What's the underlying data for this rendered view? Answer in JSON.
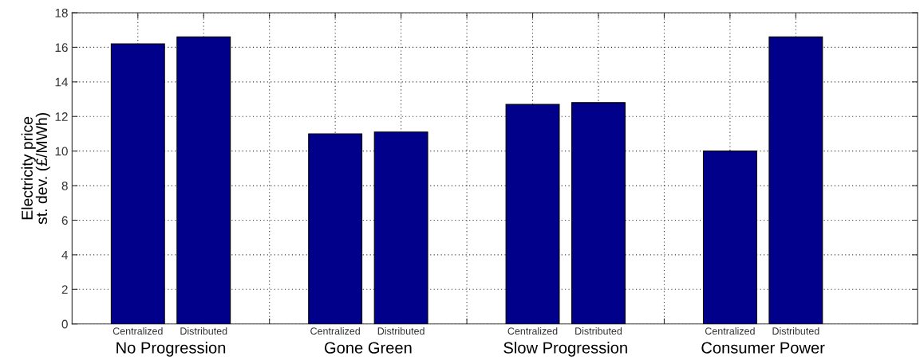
{
  "chart_data": {
    "type": "bar",
    "ylabel": "Electricity price\nst. dev. (£/MWh)",
    "categories": [
      "Centralized",
      "Distributed",
      "Centralized",
      "Distributed",
      "Centralized",
      "Distributed",
      "Centralized",
      "Distributed"
    ],
    "values": [
      16.2,
      16.6,
      11.0,
      11.1,
      12.7,
      12.8,
      10.0,
      16.6
    ],
    "color": "#00008b",
    "annotations": [
      "No Progression",
      "Gone Green",
      "Slow Progression",
      "Consumer Power"
    ],
    "ylim": [
      0,
      18
    ],
    "yticks": [
      0,
      2,
      4,
      6,
      8,
      10,
      12,
      14,
      16,
      18
    ],
    "grid": true
  }
}
